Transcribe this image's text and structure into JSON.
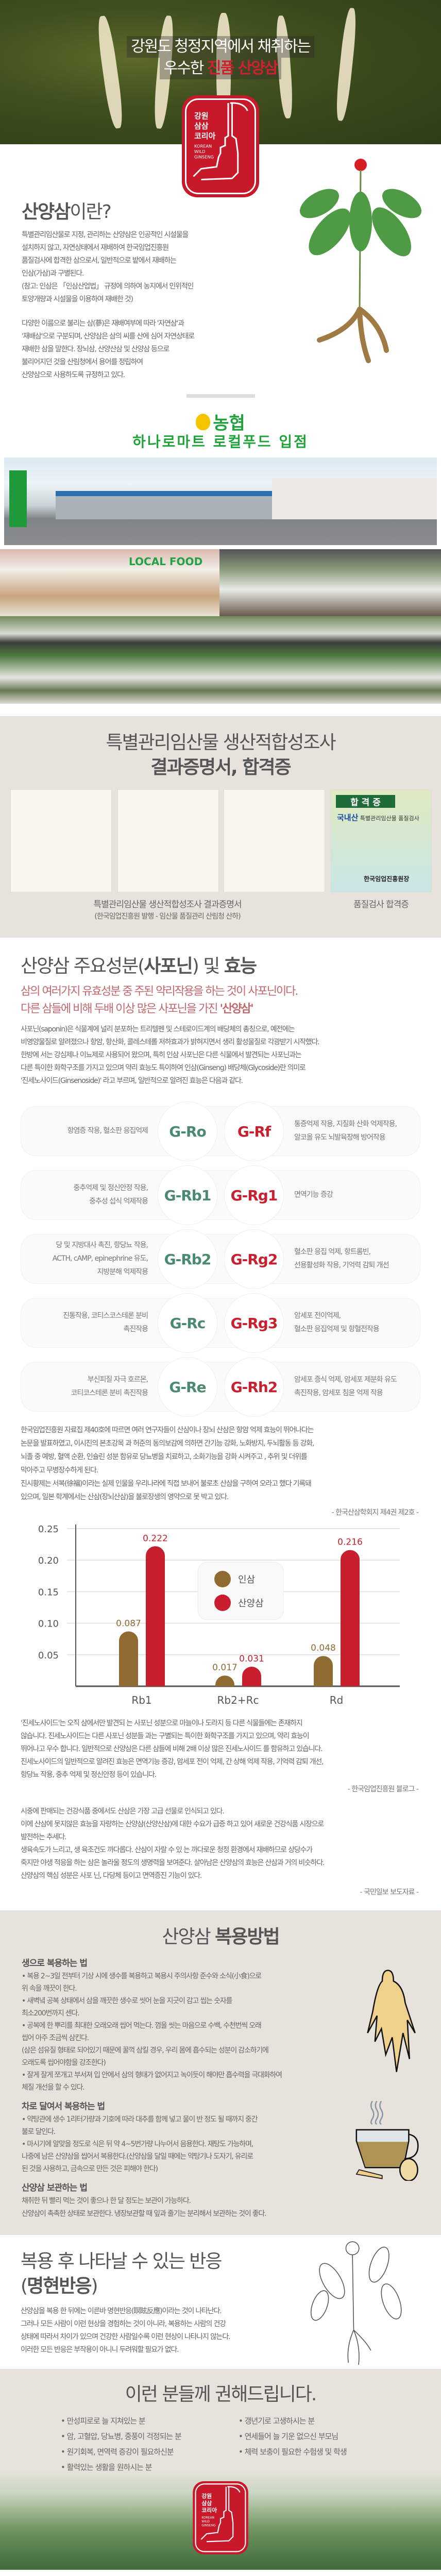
{
  "hero": {
    "title_line1": "강원도 청정지역에서 채취하는",
    "title_line2_pre": "우수한",
    "title_line2_em": "진품 산양삼"
  },
  "logo": {
    "kr_lines": [
      "강원",
      "삼삼",
      "코리아"
    ],
    "en_lines": [
      "KOREAN",
      "WILD",
      "GINSENG"
    ],
    "color": "#c8192b"
  },
  "intro": {
    "heading_bold": "산양삼",
    "heading_rest": "이란?",
    "para1": [
      "특별관리임산물로 지정, 관리하는 산양삼은 인공적인 시설물을",
      "설치하지 않고, 자연상태에서 재배하여 한국임업진흥원",
      "품질검사에 합격한 삼으로서, 일반적으로 밭에서 재배하는",
      "인삼(가삼)과 구별된다.",
      "(참고: 인삼은 「인삼산업법」 규정에 의하여 농지에서 인위적인",
      "토양개량과 시설물을 이용하여 재배한 것)"
    ],
    "para2": [
      "다양한 이름으로 불리는 삼(蔘)은 재배여부에 따라 '자연삼'과",
      "'재배삼'으로 구분되며, 산양삼은 삼의 씨를 산에 심어 자연상태로",
      "재배한 삼을 말한다. 장뇌삼, 산양산삼 및 산양삼 등으로",
      "불리어지던 것을 산림청에서 용어를 정립하여",
      "산양삼으로 사용하도록 규정하고 있다."
    ]
  },
  "store": {
    "brand": "농협",
    "title": "하나로마트 로컬푸드 입점",
    "sign_text": "LOCAL FOOD",
    "brand_color": "#1fa33a"
  },
  "cert": {
    "title_light": "특별관리임산물 생산적합성조사",
    "title_bold": "결과증명서, 합격증",
    "caption1": "특별관리임산물 생산적합성조사 결과증명서",
    "caption1_sub": "(한국임업진흥원 발행 - 임산물 품질관리 산림청 산하)",
    "caption2": "품질검사 합격증",
    "pass_card": {
      "title": "합 격 증",
      "origin": "국내산",
      "subtitle": "특별관리임산물 품질검사",
      "issuer": "한국임업진흥원장"
    }
  },
  "saponin": {
    "heading_light1": "산양삼 주요성분(",
    "heading_bold1": "사포닌",
    "heading_light2": ") 및 ",
    "heading_bold2": "효능",
    "highlight1": "삼의 여러가지 유효성분 중 주된 약리작용을 하는 것이 사포닌이다.",
    "highlight2_pre": "다른 삼들에 비해 두배 이상 많은 사포닌을 가진 ",
    "highlight2_em": "'산양삼'",
    "para": [
      "사포닌(saponin)은 식물계에 널리 분포하는 트리텔펜 및 스테로이드계의 배당체의 총칭으로, 예전에는",
      "비영양물질로 알려졌으나 항암, 항산화, 콜레스테롤 저하효과가 밝혀지면서 생리 활성물질로 각광받기 시작했다.",
      "한방에 서는 강심제나 이뇨제로 사용되어 왔으며, 특히 인삼 사포닌은 다른 식물에서 발견되는 사포닌과는",
      "다른 특이한 화학구조를 가지고 있으며 약리 효능도 특이하여 인삼(Ginseng) 배당체(Glycoside)란 의미로",
      "'진세노사이드(Ginsenoside)' 라고 부르며, 일반적으로 알려진 효능은 다음과 같다."
    ],
    "rows": [
      {
        "left": [
          "항염증 작용, 혈소판 응집억제"
        ],
        "g1": "G-Ro",
        "g2": "G-Rf",
        "right": [
          "통증억제 작용, 지질화 산화 억제작용,",
          "알코올 유도 뇌발육장해 방어작용"
        ]
      },
      {
        "left": [
          "중추억제 및 정신안정 작용,",
          "중추성 섭식 억제작용"
        ],
        "g1": "G-Rb1",
        "g2": "G-Rg1",
        "right": [
          "면역기능 증강"
        ]
      },
      {
        "left": [
          "당 및 지방대사 촉진, 항당뇨 작용,",
          "ACTH, cAMP, epinephrine 유도,",
          "지방분해 억제작용"
        ],
        "g1": "G-Rb2",
        "g2": "G-Rg2",
        "right": [
          "혈소판 응집 억제, 항트롬빈,",
          "선용활성화 작용, 기억력 감퇴 개선"
        ]
      },
      {
        "left": [
          "진통작용, 코티스코스테론 분비",
          "촉진작용"
        ],
        "g1": "G-Rc",
        "g2": "G-Rg3",
        "right": [
          "암세포 전이억제,",
          "혈소판 응집억제 및 항혈전작용"
        ]
      },
      {
        "left": [
          "부신피질 자극 호르몬,",
          "코티코스테론 분비 촉진작용"
        ],
        "g1": "G-Re",
        "g2": "G-Rh2",
        "right": [
          "암세포 증식 억제, 암세포 제분화 유도",
          "촉진작용, 암세포 침윤 억제 작용"
        ]
      }
    ],
    "para2": [
      "한국임업진흥원 자료집 제40호에 따르면 여러 연구자들이 산삼이나 장뇌 산삼은 항암 억제 효능이 뛰어나다는",
      "논문을 발표하였고, 이시진의 본초강목 과 허준의 동의보감에 의하면 간기능 강화, 노화방지, 두뇌활동 등 강화,",
      "뇌졸 중 예방, 혈액 순환, 인슐린 성분 함유로 당뇨병을 치료하고, 소화기능을 강화 시켜주고 , 추위 및 더위를",
      "막아주고 무병장수하게 된다.",
      "진시황제는 서복(徐福)이라는 실제 인물을 우리나라에 직접 보내어 불로초 산삼을 구하여 오라고 했다 기록돼",
      "있으며, 일본 학계에서는 산삼(장뇌산삼)을 불로장생의 영약으로 못 박고 있다."
    ],
    "source1": "- 한국산삼학회지 제4권 제2호 -",
    "para3": [
      "'진세노사이드'는 오직 삼에서만 발견되 는 사포닌 성분으로 마늘이나 도라지 등 다른 식물들에는 존재하지",
      "않습니다. 진세노사이드는 다른 사포닌 성분들 과는 구별되는 특이한 화학구조를 가지고 있으며, 약리 효능이",
      "뛰어나고 우수 합니다. 일반적으로 산양삼은 다른 삼들에 비해 2배 이상 많은 진세노사이드 를 함유하고 있습니다.",
      "진세노사이드의 일반적으로 알려진 효능은 면역기능 증강, 암세포 전이 억제, 간 상해 억제 작용, 기억력 감퇴 개선,",
      "항당뇨 작용, 중추 억제 및 정신안정 등이 있습니다."
    ],
    "source2": "- 한국임업진흥원 블로그 -",
    "para4": [
      "시중에 판매되는 건강식품 중에서도 산삼은 가장 고급 선물로 인식되고 있다.",
      "이에 산삼에 못지않은 효능을 자랑하는 산양삼(산양산삼)에 대한 수요가 급증 하고 있어 새로운 건강식품 시장으로",
      "발전하는 추세다.",
      "생육속도가 느리고, 생 육조건도 까다롭다. 산삼이 자랄 수 있 는 까다로운 청정 환경에서 재배하므로 상당수가",
      "죽지만 야생 적응을 하는 삼은 놀라울 정도의 생명력을 보여준다. 살아남은 산양삼의 효능은 산삼과 거의 비슷하다.",
      "산양삼의 핵심 성분은 사포 닌, 다당체 등이고 면역증진 기능이 있다."
    ],
    "source3": "- 국민일보 보도자료 -"
  },
  "chart_data": {
    "type": "bar",
    "categories": [
      "Rb1",
      "Rb2+Rc",
      "Rd"
    ],
    "series": [
      {
        "name": "인삼",
        "values": [
          0.087,
          0.017,
          0.048
        ],
        "color": "#8f6b32"
      },
      {
        "name": "산양삼",
        "values": [
          0.222,
          0.031,
          0.216
        ],
        "color": "#c81e2e"
      }
    ],
    "yticks": [
      "0.05",
      "0.10",
      "0.15",
      "0.20",
      "0.25"
    ],
    "ylim": [
      0,
      0.25
    ],
    "grid": true,
    "legend": "center"
  },
  "method": {
    "heading_light": "산양삼 ",
    "heading_bold": "복용방법",
    "raw_title": "생으로 복용하는 법",
    "raw_lines": [
      "• 복용 2~3일 전부터 기상 시에 생수를 복용하고 복용시 주의사항 준수와  소식(小食)으로",
      "   위 속을 깨끗이 한다.",
      "• 새벽녘 공복 상태에서 삼을 깨끗한 생수로 씻어 눈을 지긋이 감고 씹는 숫자를",
      "   최소200번까지 센다.",
      "• 공복에 한 뿌리를 최대한 오래오래 씹어 먹는다. 껌을 씻는 마음으로 수백, 수천번씩 오래",
      "   씹어 아주 조금씩 삼킨다.",
      "   (삼은 섬유질 형태로 되어있기 때문에 꿀꺽 삼킬 경우, 우리 몸에 흡수되는 성분이 감소하기에",
      "    오래도록 씹어야함을 강조한다)",
      "• 잘게 잘게 쪼개고 부서져 입 안에서 삼의 형태가 없어지고 녹이듯이 해야만 흡수력을 극대화하여",
      "   체질 개선을 할 수 있다."
    ],
    "tea_title": "차로 달여서 복용하는 법",
    "tea_lines": [
      "• 약탕관에 생수 1리터가량과 기호에 따라 대추를 함께 넣고 물이 반 정도 될 때까지 중간",
      "   불로 달인다.",
      "• 마시기에 알맞을 정도로 식은 뒤 약 4~5번가량 나누어서 음용한다. 재탕도 가능하며,",
      "   나중에 남은 산양삼을 씹어서 복용한다.(산양삼을 달일 때에는 약탕기나 도자기, 유리로",
      "   된 것을 사용하고, 금속으로 만든 것은 피해야 한다)"
    ],
    "store_title": "산양삼 보관하는 법",
    "store_lines": [
      "채취한 뒤 빨리 먹는 것이 좋으나 한 달 정도는 보관이 가능하다.",
      "산양삼이 촉촉한 상태로 보관한다. 냉장보관할 때 잎과 줄기는 분리해서 보관하는 것이 좋다."
    ]
  },
  "reaction": {
    "heading_line1": "복용 후 나타날 수 있는 반응",
    "heading_open": "(",
    "heading_bold": "명현반응",
    "heading_close": ")",
    "lines": [
      "산양삼을 복용 한 뒤에는 이른바 명현반응(瞑眩反應)이라는 것이 나타난다.",
      "그러나 모든 사람이 이런 현상을 경험하는 것이 아니라, 복용하는 사람의 건강",
      "상태에 따라서 차이가 있으며 건강한 사람일수록 이런 현상이 나타나지 않는다.",
      "이러한 모든 반응은 부작용이 아니니 두려워할 필요가 없다."
    ]
  },
  "recommend": {
    "heading": "이런 분들께 권해드립니다.",
    "left": [
      "• 만성피로로 늘 지쳐있는 분",
      "• 암, 고혈압, 당뇨병, 중풍이 걱정되는 분",
      "• 원기회복, 면역력 증강이 필요하신분",
      "• 활력있는 생활을 원하시는 분"
    ],
    "right": [
      "• 갱년기로 고생하시는 분",
      "• 연세들어 늘 기운 없으신 부모님",
      "• 체력 보충이 필요한 수험생 및 학생"
    ]
  }
}
